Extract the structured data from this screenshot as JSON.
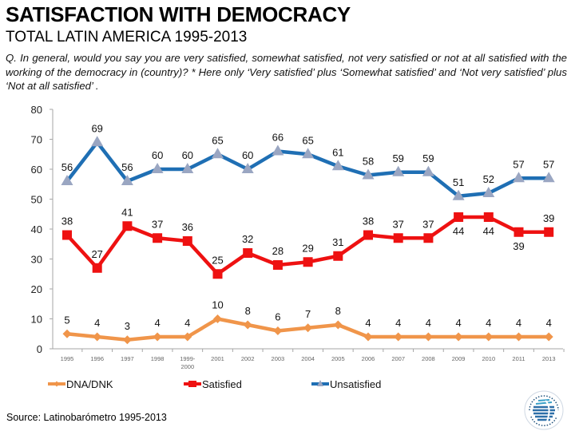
{
  "header": {
    "title": "SATISFACTION WITH DEMOCRACY",
    "subtitle": "TOTAL LATIN AMERICA 1995-2013",
    "question": "Q. In general, would you say you are very satisfied, somewhat satisfied, not very satisfied or not at all satisfied with the working of the democracy in (country)? * Here only ‘Very satisfied’ plus ‘Somewhat satisfied’ and ‘Not very satisfied’ plus ‘Not at all satisfied’ ."
  },
  "footer": {
    "source": "Source: Latinobarómetro 1995-2013",
    "logo_icon": "latinobarometro-logo-icon"
  },
  "chart_data": {
    "type": "line",
    "title": "SATISFACTION WITH DEMOCRACY",
    "xlabel": "",
    "ylabel": "",
    "ylim": [
      0,
      80
    ],
    "yticks": [
      0,
      10,
      20,
      30,
      40,
      50,
      60,
      70,
      80
    ],
    "grid": false,
    "legend_position": "bottom",
    "categories": [
      "1995",
      "1996",
      "1997",
      "1998",
      "1999-2000",
      "2001",
      "2002",
      "2003",
      "2004",
      "2005",
      "2006",
      "2007",
      "2008",
      "2009",
      "2010",
      "2011",
      "2013"
    ],
    "series": [
      {
        "name": "DNA/DNK",
        "color": "#f0954a",
        "marker": "diamond",
        "values": [
          5,
          4,
          3,
          4,
          4,
          10,
          8,
          6,
          7,
          8,
          4,
          4,
          4,
          4,
          4,
          4,
          4
        ],
        "label_position": [
          "above",
          "above",
          "above",
          "above",
          "above",
          "above",
          "above",
          "above",
          "above",
          "above",
          "above",
          "above",
          "above",
          "above",
          "above",
          "above",
          "above"
        ]
      },
      {
        "name": "Satisfied",
        "color": "#ee1111",
        "marker": "square",
        "values": [
          38,
          27,
          41,
          37,
          36,
          25,
          32,
          28,
          29,
          31,
          38,
          37,
          37,
          44,
          44,
          39,
          39
        ],
        "label_position": [
          "above",
          "above",
          "above",
          "above",
          "above",
          "above",
          "above",
          "above",
          "above",
          "above",
          "above",
          "above",
          "above",
          "below",
          "below",
          "below",
          "above"
        ]
      },
      {
        "name": "Unsatisfied",
        "color": "#1f6fb4",
        "marker_color": "#9aa6c2",
        "marker": "triangle",
        "values": [
          56,
          69,
          56,
          60,
          60,
          65,
          60,
          66,
          65,
          61,
          58,
          59,
          59,
          51,
          52,
          57,
          57
        ],
        "label_position": [
          "above",
          "above",
          "above",
          "above",
          "above",
          "above",
          "above",
          "above",
          "above",
          "above",
          "above",
          "above",
          "above",
          "above",
          "above",
          "above",
          "above"
        ]
      }
    ]
  }
}
